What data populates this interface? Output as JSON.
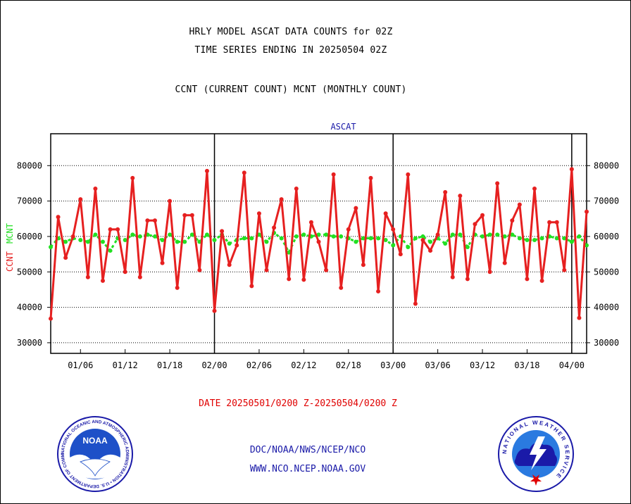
{
  "header": {
    "line1": "HRLY MODEL ASCAT DATA COUNTS for 02Z",
    "line2": "TIME SERIES ENDING IN 20250504 02Z",
    "line3": "CCNT (CURRENT COUNT) MCNT (MONTHLY COUNT)"
  },
  "colors": {
    "ccnt": "#e62020",
    "mcnt": "#22e022",
    "label": "#1a1aa8",
    "date": "#e00000"
  },
  "chart_data": {
    "type": "line",
    "title": "ASCAT",
    "ylabel_ccnt": "CCNT",
    "ylabel_mcnt": "MCNT",
    "ylim": [
      27000,
      89000
    ],
    "yticks": [
      30000,
      40000,
      50000,
      60000,
      70000,
      80000
    ],
    "ytick_labels": [
      "30000",
      "40000",
      "50000",
      "60000",
      "70000",
      "80000"
    ],
    "xticks": [
      "01/06",
      "01/12",
      "01/18",
      "02/00",
      "02/06",
      "02/12",
      "02/18",
      "03/00",
      "03/06",
      "03/12",
      "03/18",
      "04/00"
    ],
    "x_start": "01/02",
    "x_end": "04/02",
    "grid": true,
    "series": [
      {
        "name": "CCNT",
        "values": [
          36800,
          65500,
          54000,
          60000,
          70500,
          48500,
          73500,
          47500,
          62000,
          62000,
          50000,
          76500,
          48500,
          64500,
          64500,
          52500,
          70000,
          45500,
          66000,
          66000,
          50500,
          78500,
          39000,
          61500,
          52000,
          57500,
          78000,
          46000,
          66500,
          50500,
          62500,
          70500,
          48000,
          73500,
          47800,
          64000,
          58500,
          50500,
          77500,
          45500,
          62000,
          68000,
          52000,
          76500,
          44500,
          66500,
          62000,
          55000,
          77500,
          41000,
          59000,
          56000,
          60500,
          72500,
          48500,
          71500,
          48000,
          63500,
          66000,
          50000,
          75000,
          52500,
          64500,
          69000,
          48000,
          73500,
          47500,
          64000,
          64000,
          50500,
          79000,
          37000,
          67000
        ]
      },
      {
        "name": "MCNT",
        "values": [
          57000,
          59500,
          58500,
          59500,
          59000,
          58500,
          60500,
          58500,
          56000,
          59500,
          59000,
          60500,
          60000,
          60500,
          60000,
          59000,
          60500,
          58500,
          58500,
          60500,
          58500,
          60500,
          59000,
          60500,
          58000,
          59000,
          59500,
          59500,
          60500,
          58500,
          61000,
          59500,
          55500,
          60000,
          60500,
          60000,
          60500,
          60500,
          60000,
          60000,
          59500,
          58500,
          59500,
          59500,
          59500,
          59000,
          57500,
          60000,
          57000,
          59500,
          60000,
          58500,
          59500,
          58000,
          60500,
          60500,
          57000,
          60500,
          60000,
          60500,
          60500,
          60000,
          60500,
          59500,
          59000,
          59000,
          59500,
          60000,
          59500,
          59500,
          58500,
          60000,
          57500
        ]
      }
    ]
  },
  "footer": {
    "date_range": "DATE 20250501/0200 Z-20250504/0200 Z",
    "org": "DOC/NOAA/NWS/NCEP/NCO",
    "url": "WWW.NCO.NCEP.NOAA.GOV"
  },
  "logos": {
    "noaa_text": "NOAA",
    "noaa_ring": "NATIONAL OCEANIC AND ATMOSPHERIC ADMINISTRATION • U.S. DEPARTMENT OF COMMERCE",
    "nws_ring": "NATIONAL WEATHER SERVICE"
  }
}
